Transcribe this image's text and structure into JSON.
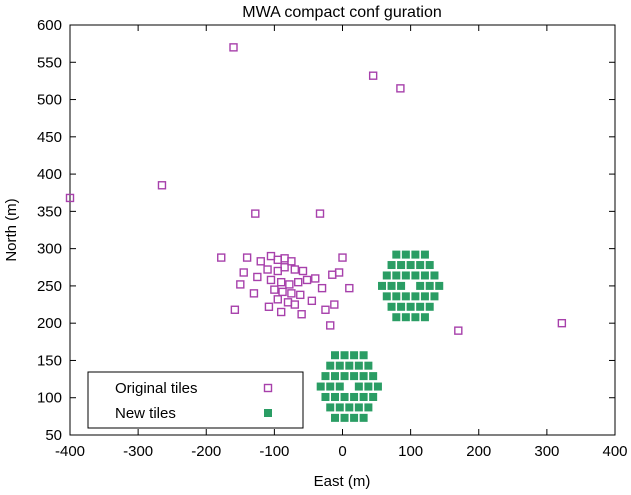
{
  "title": "MWA compact conf guration",
  "chart_data": {
    "type": "scatter",
    "title": "MWA compact conf guration",
    "xlabel": "East (m)",
    "ylabel": "North (m)",
    "xlim": [
      -400,
      400
    ],
    "ylim": [
      50,
      600
    ],
    "xticks": [
      -400,
      -300,
      -200,
      -100,
      0,
      100,
      200,
      300,
      400
    ],
    "yticks": [
      50,
      100,
      150,
      200,
      250,
      300,
      350,
      400,
      450,
      500,
      550,
      600
    ],
    "grid": false,
    "legend_position": "bottom-left",
    "series": [
      {
        "name": "Original tiles",
        "marker": "open-square",
        "color": "#a740ab",
        "points": [
          [
            -400,
            368
          ],
          [
            -265,
            385
          ],
          [
            -160,
            570
          ],
          [
            45,
            532
          ],
          [
            85,
            515
          ],
          [
            -128,
            347
          ],
          [
            -33,
            347
          ],
          [
            -178,
            288
          ],
          [
            -150,
            252
          ],
          [
            -158,
            218
          ],
          [
            170,
            190
          ],
          [
            322,
            200
          ],
          [
            -145,
            268
          ],
          [
            -140,
            288
          ],
          [
            -130,
            240
          ],
          [
            -120,
            283
          ],
          [
            -105,
            290
          ],
          [
            -95,
            285
          ],
          [
            -85,
            287
          ],
          [
            -75,
            283
          ],
          [
            -110,
            272
          ],
          [
            -95,
            270
          ],
          [
            -85,
            275
          ],
          [
            -70,
            272
          ],
          [
            -58,
            270
          ],
          [
            -125,
            262
          ],
          [
            -105,
            258
          ],
          [
            -90,
            255
          ],
          [
            -78,
            252
          ],
          [
            -65,
            255
          ],
          [
            -52,
            258
          ],
          [
            -100,
            245
          ],
          [
            -88,
            242
          ],
          [
            -75,
            240
          ],
          [
            -62,
            238
          ],
          [
            -95,
            232
          ],
          [
            -80,
            228
          ],
          [
            -70,
            225
          ],
          [
            -108,
            222
          ],
          [
            -90,
            215
          ],
          [
            -60,
            212
          ],
          [
            -45,
            230
          ],
          [
            -40,
            260
          ],
          [
            -30,
            247
          ],
          [
            -15,
            265
          ],
          [
            -5,
            268
          ],
          [
            0,
            288
          ],
          [
            -12,
            225
          ],
          [
            -25,
            218
          ],
          [
            -18,
            197
          ],
          [
            10,
            247
          ]
        ]
      },
      {
        "name": "New tiles",
        "marker": "filled-square",
        "color": "#2a9d64",
        "points": [
          [
            79,
            292
          ],
          [
            93,
            292
          ],
          [
            107,
            292
          ],
          [
            121,
            292
          ],
          [
            72,
            278
          ],
          [
            86,
            278
          ],
          [
            100,
            278
          ],
          [
            114,
            278
          ],
          [
            128,
            278
          ],
          [
            65,
            264
          ],
          [
            79,
            264
          ],
          [
            93,
            264
          ],
          [
            107,
            264
          ],
          [
            121,
            264
          ],
          [
            135,
            264
          ],
          [
            58,
            250
          ],
          [
            72,
            250
          ],
          [
            86,
            250
          ],
          [
            114,
            250
          ],
          [
            128,
            250
          ],
          [
            142,
            250
          ],
          [
            65,
            236
          ],
          [
            79,
            236
          ],
          [
            93,
            236
          ],
          [
            107,
            236
          ],
          [
            121,
            236
          ],
          [
            135,
            236
          ],
          [
            72,
            222
          ],
          [
            86,
            222
          ],
          [
            100,
            222
          ],
          [
            114,
            222
          ],
          [
            128,
            222
          ],
          [
            79,
            208
          ],
          [
            93,
            208
          ],
          [
            107,
            208
          ],
          [
            121,
            208
          ],
          [
            -11,
            157
          ],
          [
            3,
            157
          ],
          [
            17,
            157
          ],
          [
            31,
            157
          ],
          [
            -18,
            143
          ],
          [
            -4,
            143
          ],
          [
            10,
            143
          ],
          [
            24,
            143
          ],
          [
            38,
            143
          ],
          [
            -25,
            129
          ],
          [
            -11,
            129
          ],
          [
            3,
            129
          ],
          [
            17,
            129
          ],
          [
            31,
            129
          ],
          [
            45,
            129
          ],
          [
            -32,
            115
          ],
          [
            -18,
            115
          ],
          [
            -4,
            115
          ],
          [
            24,
            115
          ],
          [
            38,
            115
          ],
          [
            52,
            115
          ],
          [
            -25,
            101
          ],
          [
            -11,
            101
          ],
          [
            3,
            101
          ],
          [
            17,
            101
          ],
          [
            31,
            101
          ],
          [
            45,
            101
          ],
          [
            -18,
            87
          ],
          [
            -4,
            87
          ],
          [
            10,
            87
          ],
          [
            24,
            87
          ],
          [
            38,
            87
          ],
          [
            -11,
            73
          ],
          [
            3,
            73
          ],
          [
            17,
            73
          ],
          [
            31,
            73
          ]
        ]
      }
    ]
  }
}
